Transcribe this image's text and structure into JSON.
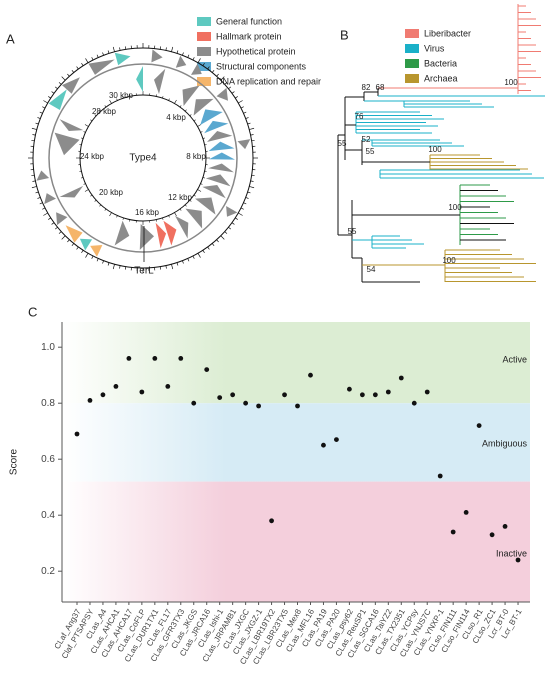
{
  "panel_a": {
    "label": "A",
    "legend": [
      {
        "name": "General function",
        "color": "#5ec9c0"
      },
      {
        "name": "Hallmark protein",
        "color": "#f07060"
      },
      {
        "name": "Hypothetical protein",
        "color": "#8c8c8c"
      },
      {
        "name": "Structural components",
        "color": "#5aa8d0"
      },
      {
        "name": "DNA replication and repair",
        "color": "#f5b56a"
      }
    ],
    "ring_labels": [
      "4 kbp",
      "8 kbp",
      "12 kbp",
      "16 kbp",
      "20 kbp",
      "24 kbp",
      "28 kbp",
      "30 kbp"
    ],
    "center": "Type4",
    "marker": "TerL"
  },
  "panel_b": {
    "label": "B",
    "legend": [
      {
        "name": "Liberibacter",
        "color": "#f07b72"
      },
      {
        "name": "Virus",
        "color": "#1ab0c8"
      },
      {
        "name": "Bacteria",
        "color": "#2e9a48"
      },
      {
        "name": "Archaea",
        "color": "#b8962e"
      }
    ],
    "node_labels": [
      68,
      82,
      100,
      76,
      52,
      55,
      55,
      100,
      100,
      55,
      54,
      100
    ]
  },
  "chart_data": {
    "type": "scatter",
    "label": "C",
    "y_label": "Score",
    "categories": [
      "CLaf_Ang37",
      "Claf_PTSAPSY",
      "CLas_A4",
      "CLas_AHCA1",
      "CLas_AHCA17",
      "CLas_CoFLP",
      "CLas_DUR1TX1",
      "CLas_FL17",
      "CLas_GFR3TX3",
      "CLas_JKGS",
      "CLas_JRCA16",
      "CLas_Ishi-1",
      "CLas_JRPAMB1",
      "CLas_JXGC",
      "CLas_JXGZ-1",
      "CLas_LBR19TX2",
      "CLas_LBR23TX5",
      "CLas_Mex8",
      "CLas_MFL16",
      "CLas_PA19",
      "CLas_PA20",
      "CLas_psy62",
      "CLas_ReuSP1",
      "CLas_SGCA16",
      "CLas_TaiYZ2",
      "CLas_TX2351",
      "CLas_YCPsy",
      "CLas_YNJS7C",
      "CLas_YNXP-1",
      "CLso_FIN111",
      "CLso_FIN114",
      "CLso_R1",
      "CLso_ZC1",
      "Lcr_BT-0",
      "Lcr_BT-1"
    ],
    "values": [
      0.69,
      0.81,
      0.83,
      0.86,
      0.96,
      0.84,
      0.96,
      0.86,
      0.96,
      0.8,
      0.92,
      0.82,
      0.83,
      0.8,
      0.79,
      0.38,
      0.83,
      0.79,
      0.9,
      0.65,
      0.67,
      0.85,
      0.83,
      0.83,
      0.84,
      0.89,
      0.8,
      0.84,
      0.54,
      0.34,
      0.41,
      0.72,
      0.33,
      0.36,
      0.24
    ],
    "color": "#111111",
    "ylim": [
      0.09,
      1.09
    ],
    "yticks": [
      0.2,
      0.4,
      0.6,
      {
        "value": 0.8,
        "label": "0.8"
      },
      {
        "value": 1,
        "label": "1.0"
      }
    ],
    "bands": [
      {
        "label": "Active",
        "from": 0.8,
        "to": 1.09,
        "color": "#dcedd3"
      },
      {
        "label": "Ambiguous",
        "from": 0.52,
        "to": 0.8,
        "color": "#d6ebf5"
      },
      {
        "label": "Inactive",
        "from": 0.09,
        "to": 0.52,
        "color": "#f4cfdc"
      }
    ]
  }
}
